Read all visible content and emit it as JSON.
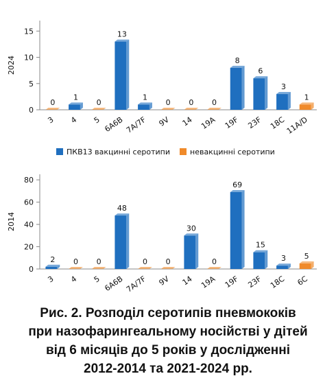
{
  "chart_data": [
    {
      "type": "bar",
      "ylabel": "2024",
      "categories": [
        "3",
        "4",
        "5",
        "6A6B",
        "7A/7F",
        "9V",
        "14",
        "19A",
        "19F",
        "23F",
        "18C",
        "11A/D"
      ],
      "values": [
        0,
        1,
        0,
        13,
        1,
        0,
        0,
        0,
        8,
        6,
        3,
        1
      ],
      "colors": [
        "#f08a2a",
        "#1f6fbf",
        "#f08a2a",
        "#1f6fbf",
        "#1f6fbf",
        "#f08a2a",
        "#f08a2a",
        "#f08a2a",
        "#1f6fbf",
        "#1f6fbf",
        "#1f6fbf",
        "#f08a2a"
      ],
      "ylim": [
        0,
        17
      ],
      "yticks": [
        0,
        5,
        10,
        15
      ],
      "legend": [
        {
          "name": "ПКВ13 вакцинні серотипи",
          "color": "#1f6fbf"
        },
        {
          "name": "невакцинні серотипи",
          "color": "#f08a2a"
        }
      ]
    },
    {
      "type": "bar",
      "ylabel": "2014",
      "categories": [
        "3",
        "4",
        "5",
        "6A6B",
        "7A/7F",
        "9V",
        "14",
        "19A",
        "19F",
        "23F",
        "18C",
        "6C"
      ],
      "values": [
        2,
        0,
        0,
        48,
        0,
        0,
        30,
        0,
        69,
        15,
        3,
        5
      ],
      "colors": [
        "#1f6fbf",
        "#f08a2a",
        "#f08a2a",
        "#1f6fbf",
        "#f08a2a",
        "#f08a2a",
        "#1f6fbf",
        "#f08a2a",
        "#1f6fbf",
        "#1f6fbf",
        "#1f6fbf",
        "#f08a2a"
      ],
      "ylim": [
        0,
        85
      ],
      "yticks": [
        0,
        20,
        40,
        60,
        80
      ]
    }
  ],
  "caption": [
    "Рис. 2. Розподіл серотипів пневмококів",
    "при назофарингеальному носійстві у дітей",
    "від 6 місяців до 5 років у дослідженні",
    "2012-2014 та 2021-2024 рр."
  ]
}
